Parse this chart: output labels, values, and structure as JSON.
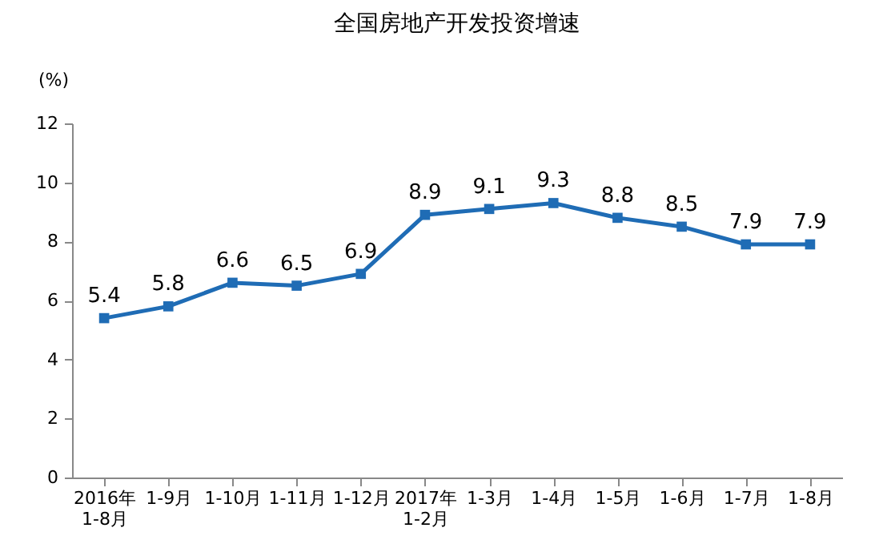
{
  "chart_data": {
    "type": "line",
    "title": "全国房地产开发投资增速",
    "ylabel": "(%)",
    "categories": [
      "2016年\n1-8月",
      "1-9月",
      "1-10月",
      "1-11月",
      "1-12月",
      "2017年\n1-2月",
      "1-3月",
      "1-4月",
      "1-5月",
      "1-6月",
      "1-7月",
      "1-8月"
    ],
    "series": [
      {
        "color": "#1f6cb5",
        "values": [
          5.4,
          5.8,
          6.6,
          6.5,
          6.9,
          8.9,
          9.1,
          9.3,
          8.8,
          8.5,
          7.9,
          7.9
        ]
      }
    ],
    "ylim": [
      0,
      12
    ],
    "yticks": [
      0,
      2,
      4,
      6,
      8,
      10,
      12
    ],
    "grid": false,
    "marker": "square",
    "line_style": "solid",
    "data_labels": true
  }
}
